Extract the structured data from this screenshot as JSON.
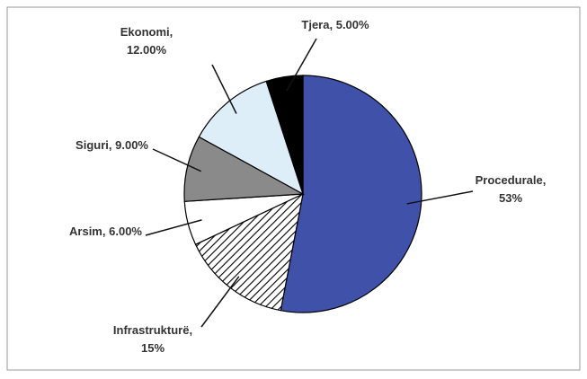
{
  "chart_data": {
    "type": "pie",
    "categories": [
      "Procedurale",
      "Infrastrukturë",
      "Arsim",
      "Siguri",
      "Ekonomi",
      "Tjera"
    ],
    "values": [
      53,
      15,
      6,
      9,
      12,
      5
    ],
    "value_labels": [
      "53%",
      "15%",
      "6.00%",
      "9.00%",
      "12.00%",
      "5.00%"
    ],
    "separator": ",",
    "colors": [
      "#3f51a8",
      "hatch",
      "#ffffff",
      "#8a8a8a",
      "#ddeef8",
      "#000000"
    ]
  }
}
